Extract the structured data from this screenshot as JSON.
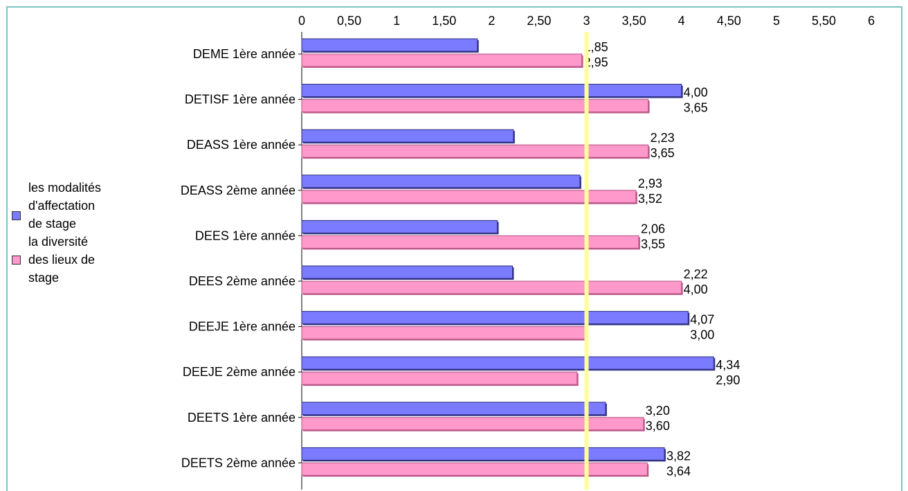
{
  "chart_data": {
    "type": "bar",
    "orientation": "horizontal",
    "title": "",
    "xlabel": "",
    "ylabel": "",
    "xlim": [
      0,
      6
    ],
    "ticks": [
      "0",
      "0,50",
      "1",
      "1,50",
      "2",
      "2,50",
      "3",
      "3,50",
      "4",
      "4,50",
      "5",
      "5,50",
      "6"
    ],
    "reference_line": 3,
    "categories": [
      "DEME 1ère année",
      "DETISF 1ère année",
      "DEASS 1ère année",
      "DEASS 2ème année",
      "DEES 1ère année",
      "DEES 2ème année",
      "DEEJE 1ère année",
      "DEEJE 2ème année",
      "DEETS 1ère année",
      "DEETS 2ème année"
    ],
    "series": [
      {
        "name_lines": [
          "les modalités",
          "d'affectation",
          "de stage"
        ],
        "color": "#7b7bff",
        "values": [
          1.85,
          4.0,
          2.23,
          2.93,
          2.06,
          2.22,
          4.07,
          4.34,
          3.2,
          3.82
        ],
        "labels": [
          "1,85",
          "4,00",
          "2,23",
          "2,93",
          "2,06",
          "2,22",
          "4,07",
          "4,34",
          "3,20",
          "3,82"
        ]
      },
      {
        "name_lines": [
          "la diversité",
          "des lieux de",
          "stage"
        ],
        "color": "#ff99cc",
        "values": [
          2.95,
          3.65,
          3.65,
          3.52,
          3.55,
          4.0,
          3.0,
          2.9,
          3.6,
          3.64
        ],
        "labels": [
          "2,95",
          "3,65",
          "3,65",
          "3,52",
          "3,55",
          "4,00",
          "3,00",
          "2,90",
          "3,60",
          "3,64"
        ]
      }
    ],
    "grid": false,
    "legend_position": "left",
    "colors": {
      "reference_line": "#ffff99",
      "frame": "#7fc3c3"
    }
  }
}
